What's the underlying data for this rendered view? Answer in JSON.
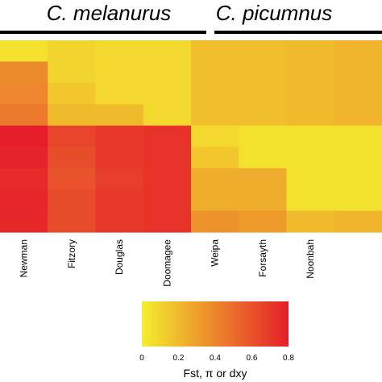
{
  "chart_data": {
    "type": "heatmap",
    "groups": [
      {
        "label": "C.  melanurus",
        "columns": [
          "Newman",
          "Fitzory",
          "Douglas",
          "Doomagee"
        ]
      },
      {
        "label": "C. picumnus",
        "columns": [
          "Weipa",
          "Forsayth",
          "Noonbah"
        ]
      }
    ],
    "columns": [
      "Newman",
      "Fitzory",
      "Douglas",
      "Doomagee",
      "Weipa",
      "Forsayth",
      "Noonbah",
      ""
    ],
    "values": [
      [
        0.05,
        0.1,
        0.08,
        0.08,
        0.18,
        0.18,
        0.2,
        0.22
      ],
      [
        0.38,
        0.1,
        0.08,
        0.08,
        0.18,
        0.18,
        0.2,
        0.22
      ],
      [
        0.4,
        0.15,
        0.08,
        0.08,
        0.18,
        0.18,
        0.2,
        0.22
      ],
      [
        0.45,
        0.2,
        0.2,
        0.08,
        0.18,
        0.18,
        0.2,
        0.22
      ],
      [
        0.8,
        0.65,
        0.7,
        0.72,
        0.08,
        0.05,
        0.05,
        0.05
      ],
      [
        0.78,
        0.62,
        0.7,
        0.72,
        0.15,
        0.05,
        0.05,
        0.05
      ],
      [
        0.75,
        0.6,
        0.68,
        0.72,
        0.25,
        0.25,
        0.05,
        0.05
      ],
      [
        0.77,
        0.62,
        0.7,
        0.72,
        0.25,
        0.25,
        0.05,
        0.05
      ],
      [
        0.76,
        0.62,
        0.7,
        0.72,
        0.35,
        0.32,
        0.2,
        0.22
      ]
    ],
    "colorscale": {
      "min": 0,
      "max": 0.8,
      "colors": [
        "#f4ee2e",
        "#e51e2a"
      ],
      "ticks": [
        "0",
        "0.2",
        "0.4",
        "0.6",
        "0.8"
      ],
      "title": "Fst, π or dxy"
    }
  }
}
